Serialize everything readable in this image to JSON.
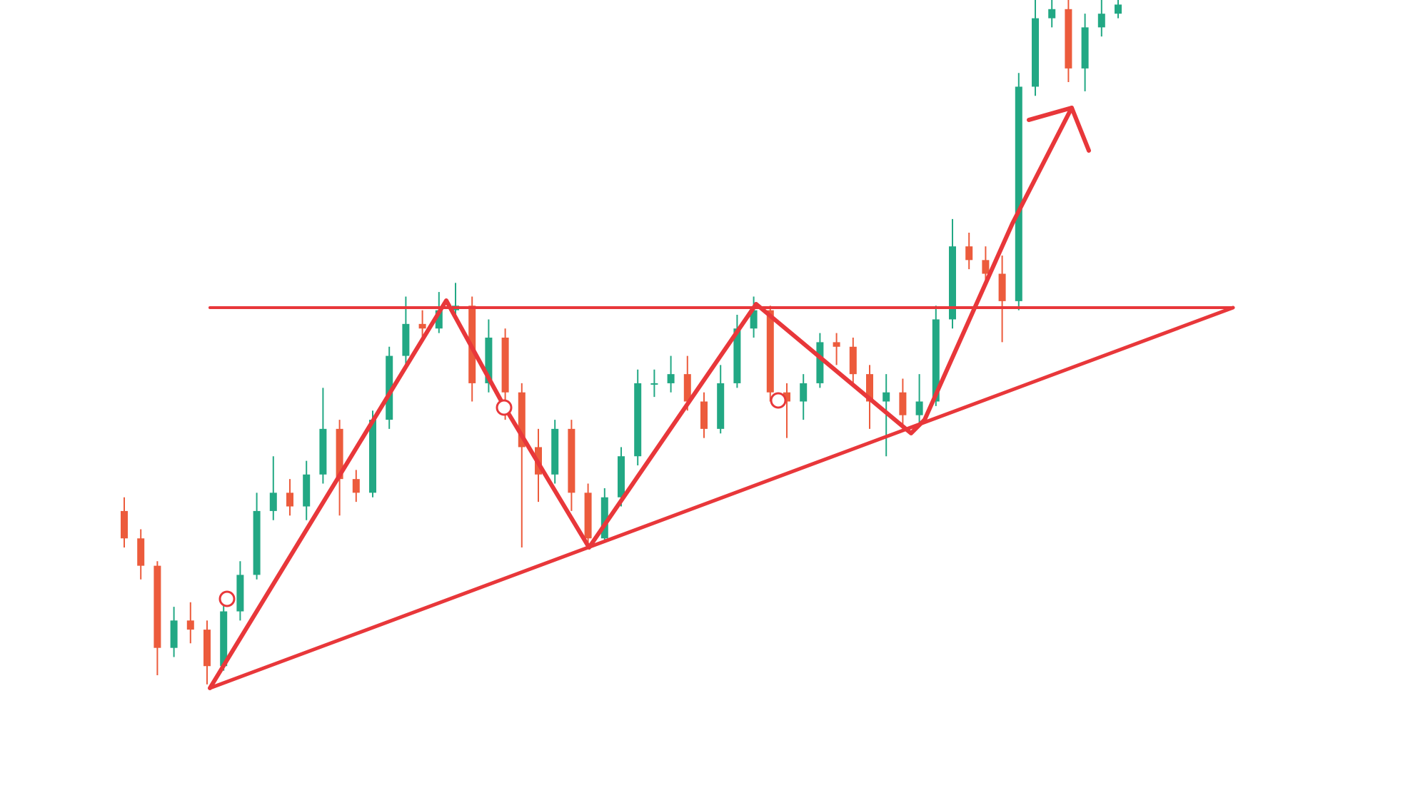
{
  "chart_data": {
    "type": "candlestick",
    "up_color": "#22a884",
    "down_color": "#ec5b3c",
    "ylim": [
      0,
      880
    ],
    "open": [
      320,
      290,
      260,
      170,
      200,
      190,
      150,
      210,
      250,
      320,
      340,
      325,
      360,
      410,
      355,
      340,
      420,
      490,
      525,
      520,
      540,
      545,
      460,
      510,
      450,
      390,
      360,
      410,
      340,
      290,
      335,
      380,
      460,
      460,
      470,
      440,
      410,
      460,
      520,
      540,
      450,
      440,
      460,
      505,
      500,
      470,
      440,
      450,
      425,
      440,
      530,
      610,
      595,
      580,
      550,
      785,
      860,
      870,
      805,
      850,
      865
    ],
    "high": [
      335,
      300,
      265,
      215,
      220,
      200,
      225,
      265,
      340,
      380,
      355,
      375,
      455,
      420,
      365,
      430,
      500,
      555,
      540,
      560,
      570,
      555,
      530,
      520,
      460,
      410,
      420,
      420,
      350,
      345,
      390,
      475,
      475,
      490,
      490,
      450,
      480,
      535,
      555,
      545,
      460,
      470,
      515,
      515,
      510,
      480,
      470,
      465,
      470,
      545,
      640,
      625,
      610,
      600,
      800,
      880,
      880,
      880,
      865,
      880,
      880
    ],
    "low": [
      280,
      245,
      140,
      160,
      175,
      130,
      145,
      200,
      245,
      310,
      315,
      310,
      350,
      315,
      330,
      335,
      410,
      480,
      505,
      515,
      530,
      440,
      450,
      420,
      280,
      330,
      350,
      320,
      280,
      285,
      325,
      370,
      445,
      450,
      430,
      400,
      405,
      455,
      510,
      440,
      400,
      420,
      455,
      480,
      460,
      410,
      380,
      410,
      415,
      435,
      520,
      585,
      570,
      505,
      540,
      775,
      850,
      790,
      780,
      840,
      860
    ],
    "close": [
      290,
      260,
      170,
      200,
      190,
      150,
      210,
      250,
      320,
      340,
      325,
      360,
      410,
      355,
      340,
      420,
      490,
      525,
      520,
      540,
      545,
      460,
      510,
      450,
      390,
      360,
      410,
      340,
      290,
      335,
      380,
      460,
      460,
      470,
      440,
      410,
      460,
      520,
      540,
      450,
      440,
      460,
      505,
      500,
      470,
      440,
      450,
      425,
      440,
      530,
      610,
      595,
      580,
      550,
      785,
      860,
      870,
      805,
      850,
      865,
      875
    ]
  }
}
